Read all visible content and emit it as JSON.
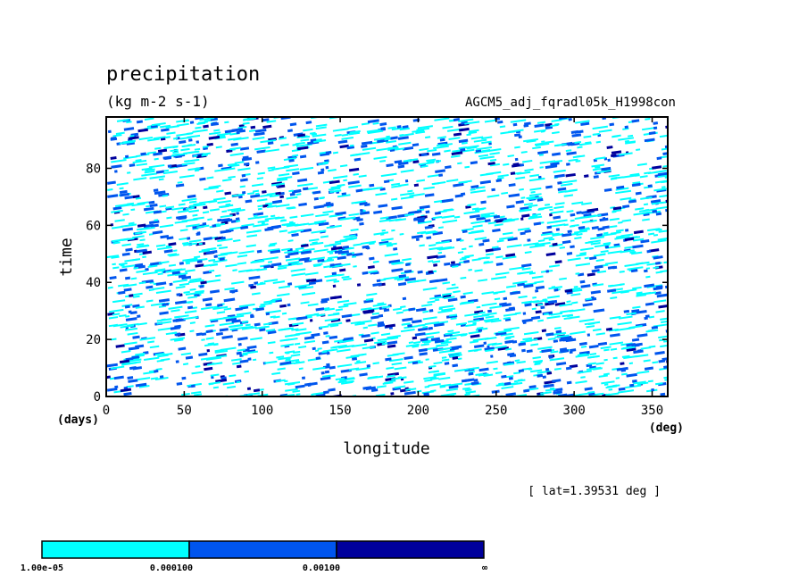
{
  "chart_data": {
    "type": "heatmap",
    "title": "precipitation",
    "subtitle": "(kg m-2 s-1)",
    "dataset_label": "AGCM5_adj_fqradl05k_H1998con",
    "xlabel": "longitude",
    "xunit": "(deg)",
    "ylabel": "time",
    "yunit": "(days)",
    "xlim": [
      0,
      360
    ],
    "ylim": [
      0,
      98
    ],
    "xticks": [
      0,
      50,
      100,
      150,
      200,
      250,
      300,
      350
    ],
    "yticks": [
      0,
      20,
      40,
      60,
      80
    ],
    "annotation": "[ lat=1.39531 deg ]",
    "grid": false,
    "colorbar": {
      "levels": [
        "1.00e-05",
        "0.000100",
        "0.00100",
        "∞"
      ],
      "colors": [
        "#00ffff",
        "#0055ee",
        "#00009c"
      ]
    }
  }
}
